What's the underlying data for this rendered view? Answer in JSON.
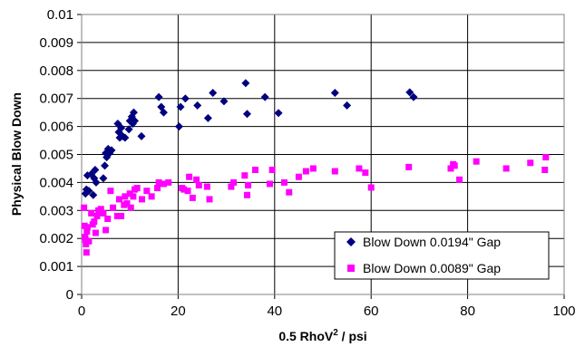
{
  "chart_data": {
    "type": "scatter",
    "title": "",
    "xlabel_main": "0.5 RhoV",
    "xlabel_sup": "2",
    "xlabel_tail": " / psi",
    "ylabel": "Physical Blow Down",
    "xlim": [
      0,
      100
    ],
    "ylim": [
      0,
      0.01
    ],
    "x_ticks": [
      "0",
      "20",
      "40",
      "60",
      "80",
      "100"
    ],
    "y_ticks": [
      "0",
      "0.001",
      "0.002",
      "0.003",
      "0.004",
      "0.005",
      "0.006",
      "0.007",
      "0.008",
      "0.009",
      "0.01"
    ],
    "grid": true,
    "legend_position": "bottom-right",
    "series": [
      {
        "name": "Blow Down 0.0194\" Gap",
        "marker": "diamond",
        "color": "#000080",
        "points": [
          [
            0.8,
            0.0036
          ],
          [
            1.0,
            0.00375
          ],
          [
            1.2,
            0.00425
          ],
          [
            1.5,
            0.0037
          ],
          [
            2.0,
            0.0043
          ],
          [
            2.4,
            0.00355
          ],
          [
            2.6,
            0.00415
          ],
          [
            2.8,
            0.00445
          ],
          [
            3.0,
            0.004
          ],
          [
            4.5,
            0.00415
          ],
          [
            4.8,
            0.0046
          ],
          [
            5.0,
            0.00505
          ],
          [
            5.2,
            0.0049
          ],
          [
            5.5,
            0.0052
          ],
          [
            5.8,
            0.00505
          ],
          [
            6.2,
            0.00515
          ],
          [
            7.5,
            0.0061
          ],
          [
            7.7,
            0.0058
          ],
          [
            7.9,
            0.0056
          ],
          [
            8.2,
            0.00595
          ],
          [
            8.5,
            0.00565
          ],
          [
            9.0,
            0.0056
          ],
          [
            9.8,
            0.0059
          ],
          [
            10.0,
            0.0062
          ],
          [
            10.4,
            0.00635
          ],
          [
            10.6,
            0.0061
          ],
          [
            10.8,
            0.0065
          ],
          [
            11.0,
            0.0062
          ],
          [
            12.4,
            0.00565
          ],
          [
            16.0,
            0.00705
          ],
          [
            16.5,
            0.0067
          ],
          [
            17.0,
            0.0065
          ],
          [
            20.2,
            0.006
          ],
          [
            20.5,
            0.0067
          ],
          [
            21.5,
            0.007
          ],
          [
            24.0,
            0.00675
          ],
          [
            26.2,
            0.0063
          ],
          [
            27.2,
            0.0072
          ],
          [
            29.5,
            0.0069
          ],
          [
            34.0,
            0.00755
          ],
          [
            34.3,
            0.00645
          ],
          [
            38.0,
            0.00705
          ],
          [
            40.8,
            0.00648
          ],
          [
            52.5,
            0.0072
          ],
          [
            55.0,
            0.00675
          ],
          [
            68.0,
            0.00722
          ],
          [
            68.8,
            0.00705
          ]
        ]
      },
      {
        "name": "Blow Down 0.0089\" Gap",
        "marker": "square",
        "color": "#ff00ff",
        "points": [
          [
            0.5,
            0.0031
          ],
          [
            0.6,
            0.00245
          ],
          [
            0.7,
            0.00205
          ],
          [
            0.8,
            0.00195
          ],
          [
            0.9,
            0.0018
          ],
          [
            1.0,
            0.0015
          ],
          [
            1.1,
            0.00225
          ],
          [
            1.2,
            0.0024
          ],
          [
            1.5,
            0.0019
          ],
          [
            2.0,
            0.0029
          ],
          [
            2.3,
            0.0025
          ],
          [
            2.6,
            0.0026
          ],
          [
            2.9,
            0.0022
          ],
          [
            3.2,
            0.0028
          ],
          [
            3.5,
            0.003
          ],
          [
            4.0,
            0.00305
          ],
          [
            4.5,
            0.0029
          ],
          [
            5.0,
            0.0023
          ],
          [
            5.4,
            0.0027
          ],
          [
            6.0,
            0.0037
          ],
          [
            6.5,
            0.0031
          ],
          [
            7.4,
            0.0028
          ],
          [
            7.8,
            0.0034
          ],
          [
            8.2,
            0.0028
          ],
          [
            8.8,
            0.0032
          ],
          [
            9.0,
            0.0035
          ],
          [
            9.4,
            0.00325
          ],
          [
            10.0,
            0.0036
          ],
          [
            10.2,
            0.0031
          ],
          [
            10.7,
            0.0035
          ],
          [
            11.0,
            0.00375
          ],
          [
            11.5,
            0.0038
          ],
          [
            12.5,
            0.0034
          ],
          [
            13.5,
            0.0037
          ],
          [
            14.5,
            0.0035
          ],
          [
            15.7,
            0.0038
          ],
          [
            16.0,
            0.004
          ],
          [
            17.0,
            0.00395
          ],
          [
            18.0,
            0.004
          ],
          [
            20.8,
            0.0038
          ],
          [
            21.2,
            0.00375
          ],
          [
            22.0,
            0.0037
          ],
          [
            22.3,
            0.0042
          ],
          [
            23.0,
            0.00345
          ],
          [
            23.8,
            0.0041
          ],
          [
            24.3,
            0.0039
          ],
          [
            26.0,
            0.00385
          ],
          [
            26.5,
            0.0034
          ],
          [
            31.0,
            0.00385
          ],
          [
            31.5,
            0.004
          ],
          [
            33.8,
            0.00425
          ],
          [
            34.3,
            0.00355
          ],
          [
            34.5,
            0.0039
          ],
          [
            36.0,
            0.00445
          ],
          [
            39.0,
            0.00395
          ],
          [
            39.5,
            0.00445
          ],
          [
            42.0,
            0.004
          ],
          [
            43.0,
            0.00365
          ],
          [
            45.0,
            0.0042
          ],
          [
            46.5,
            0.0044
          ],
          [
            48.0,
            0.0045
          ],
          [
            52.5,
            0.0044
          ],
          [
            57.5,
            0.0045
          ],
          [
            58.8,
            0.00435
          ],
          [
            60.0,
            0.00382
          ],
          [
            67.8,
            0.00455
          ],
          [
            76.5,
            0.0045
          ],
          [
            77.0,
            0.00465
          ],
          [
            77.3,
            0.0046
          ],
          [
            78.3,
            0.0041
          ],
          [
            81.8,
            0.00475
          ],
          [
            88.0,
            0.0045
          ],
          [
            93.0,
            0.0047
          ],
          [
            96.0,
            0.00445
          ],
          [
            96.2,
            0.0049
          ]
        ]
      }
    ]
  }
}
